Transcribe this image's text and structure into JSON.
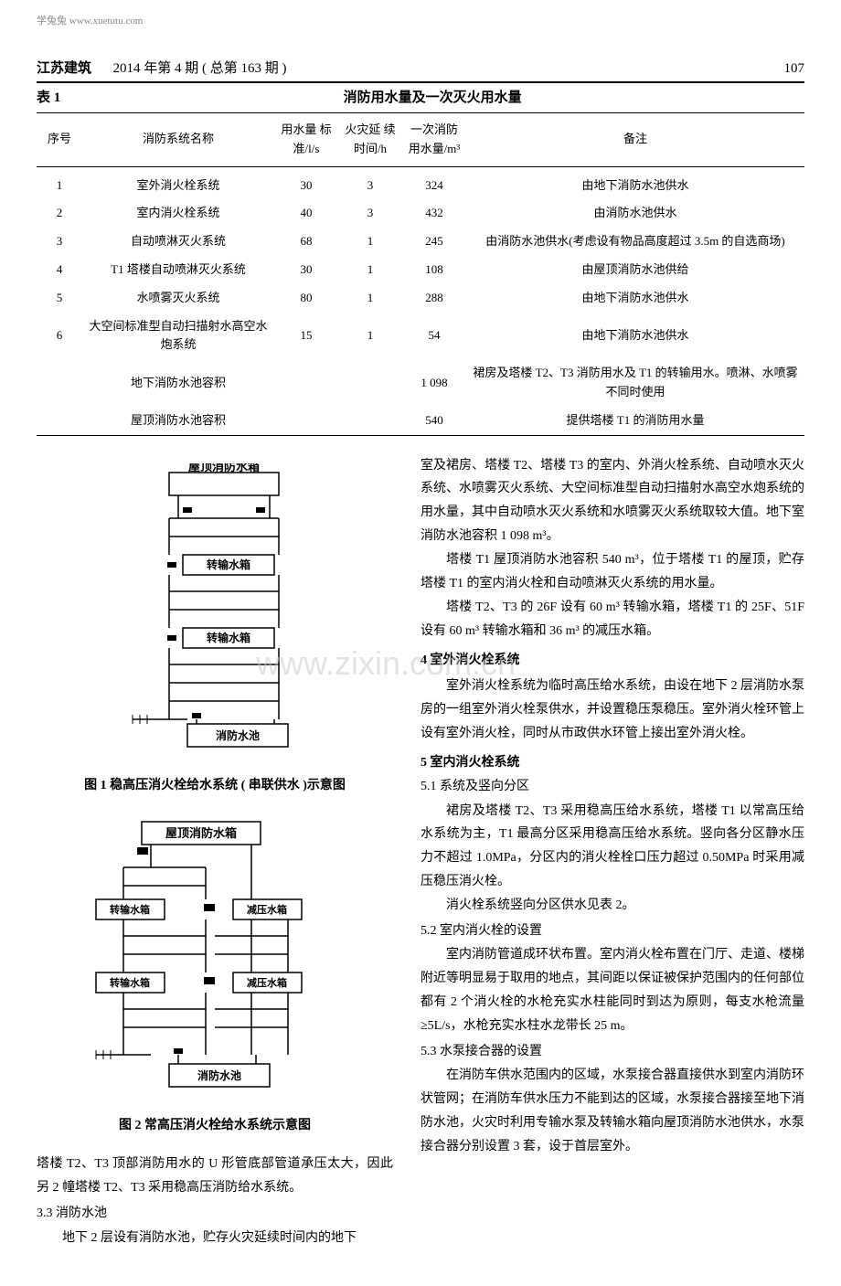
{
  "watermark_top": "学兔兔 www.xuetutu.com",
  "watermark_center": "www.zixin.com.cn",
  "header": {
    "journal": "江苏建筑",
    "issue": "2014 年第 4 期 ( 总第 163 期 )",
    "page": "107"
  },
  "table": {
    "label": "表 1",
    "title": "消防用水量及一次灭火用水量",
    "columns": [
      "序号",
      "消防系统名称",
      "用水量\n标准/l/s",
      "火灾延\n续时间/h",
      "一次消防\n用水量/m³",
      "备注"
    ],
    "rows": [
      [
        "1",
        "室外消火栓系统",
        "30",
        "3",
        "324",
        "由地下消防水池供水"
      ],
      [
        "2",
        "室内消火栓系统",
        "40",
        "3",
        "432",
        "由消防水池供水"
      ],
      [
        "3",
        "自动喷淋灭火系统",
        "68",
        "1",
        "245",
        "由消防水池供水(考虑设有物品高度超过 3.5m 的自选商场)"
      ],
      [
        "4",
        "T1 塔楼自动喷淋灭火系统",
        "30",
        "1",
        "108",
        "由屋顶消防水池供给"
      ],
      [
        "5",
        "水喷雾灭火系统",
        "80",
        "1",
        "288",
        "由地下消防水池供水"
      ],
      [
        "6",
        "大空间标准型自动扫描射水高空水炮系统",
        "15",
        "1",
        "54",
        "由地下消防水池供水"
      ]
    ],
    "summary_rows": [
      [
        "",
        "地下消防水池容积",
        "",
        "",
        "1 098",
        "裙房及塔楼 T2、T3 消防用水及 T1 的转输用水。喷淋、水喷雾不同时使用"
      ],
      [
        "",
        "屋顶消防水池容积",
        "",
        "",
        "540",
        "提供塔楼 T1 的消防用水量"
      ]
    ]
  },
  "figure1": {
    "caption": "图 1  稳高压消火栓给水系统 ( 串联供水 )示意图",
    "labels": {
      "top_tank": "屋顶消防水箱",
      "transfer_tank": "转输水箱",
      "bottom_pool": "消防水池"
    }
  },
  "figure2": {
    "caption": "图 2  常高压消火栓给水系统示意图",
    "labels": {
      "top_tank": "屋顶消防水箱",
      "transfer_tank": "转输水箱",
      "reduce_tank": "减压水箱",
      "bottom_pool": "消防水池"
    }
  },
  "left_para": [
    "塔楼 T2、T3 顶部消防用水的 U 形管底部管道承压太大，因此另 2 幢塔楼 T2、T3 采用稳高压消防给水系统。"
  ],
  "section_3_3": {
    "title": "3.3  消防水池",
    "text": "地下 2 层设有消防水池，贮存火灾延续时间内的地下"
  },
  "right_paragraphs": [
    "室及裙房、塔楼 T2、塔楼 T3 的室内、外消火栓系统、自动喷水灭火系统、水喷雾灭火系统、大空间标准型自动扫描射水高空水炮系统的用水量，其中自动喷水灭火系统和水喷雾灭火系统取较大值。地下室消防水池容积 1 098 m³。",
    "塔楼 T1 屋顶消防水池容积 540 m³，位于塔楼 T1 的屋顶，贮存塔楼 T1 的室内消火栓和自动喷淋灭火系统的用水量。",
    "塔楼 T2、T3 的 26F 设有 60 m³ 转输水箱，塔楼 T1 的 25F、51F 设有 60 m³ 转输水箱和 36 m³ 的减压水箱。"
  ],
  "section_4": {
    "title": "4  室外消火栓系统",
    "text": "室外消火栓系统为临时高压给水系统，由设在地下 2 层消防水泵房的一组室外消火栓泵供水，并设置稳压泵稳压。室外消火栓环管上设有室外消火栓，同时从市政供水环管上接出室外消火栓。"
  },
  "section_5": {
    "title": "5  室内消火栓系统"
  },
  "section_5_1": {
    "title": "5.1  系统及竖向分区",
    "text1": "裙房及塔楼 T2、T3 采用稳高压给水系统，塔楼 T1 以常高压给水系统为主，T1 最高分区采用稳高压给水系统。竖向各分区静水压力不超过 1.0MPa，分区内的消火栓栓口压力超过 0.50MPa 时采用减压稳压消火栓。",
    "text2": "消火栓系统竖向分区供水见表 2。"
  },
  "section_5_2": {
    "title": "5.2  室内消火栓的设置",
    "text": "室内消防管道成环状布置。室内消火栓布置在门厅、走道、楼梯附近等明显易于取用的地点，其间距以保证被保护范围内的任何部位都有 2 个消火栓的水枪充实水柱能同时到达为原则，每支水枪流量≥5L/s，水枪充实水柱水龙带长 25 m。"
  },
  "section_5_3": {
    "title": "5.3  水泵接合器的设置",
    "text": "在消防车供水范围内的区域，水泵接合器直接供水到室内消防环状管网；在消防车供水压力不能到达的区域，水泵接合器接至地下消防水池，火灾时利用专输水泵及转输水箱向屋顶消防水池供水，水泵接合器分别设置 3 套，设于首层室外。"
  },
  "colors": {
    "text": "#000000",
    "background": "#ffffff",
    "line": "#000000",
    "watermark": "#cccccc"
  }
}
